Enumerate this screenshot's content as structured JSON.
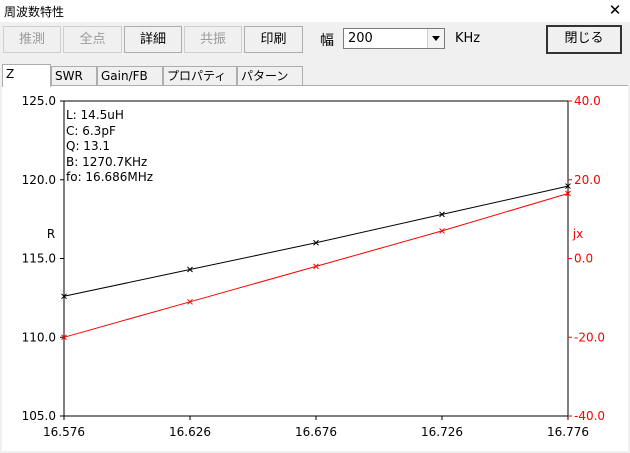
{
  "window": {
    "title": "周波数特性",
    "close_glyph": "✕"
  },
  "toolbar": {
    "buttons": [
      {
        "label": "推測",
        "enabled": false
      },
      {
        "label": "全点",
        "enabled": false
      },
      {
        "label": "詳細",
        "enabled": true
      },
      {
        "label": "共振",
        "enabled": false
      },
      {
        "label": "印刷",
        "enabled": true
      }
    ],
    "width_label": "幅",
    "width_value": "200",
    "width_unit": "KHz",
    "close_label": "閉じる"
  },
  "tabs": [
    {
      "label": "Z",
      "active": true
    },
    {
      "label": "SWR",
      "active": false
    },
    {
      "label": "Gain/FB",
      "active": false
    },
    {
      "label": "プロパティ",
      "active": false
    },
    {
      "label": "パターン",
      "active": false
    }
  ],
  "info": {
    "lines": [
      "L: 14.5uH",
      "C: 6.3pF",
      "Q: 13.1",
      "B: 1270.7KHz",
      "fo: 16.686MHz"
    ]
  },
  "chart_data": {
    "type": "line",
    "x": [
      16.576,
      16.626,
      16.676,
      16.726,
      16.776
    ],
    "x_ticks": [
      "16.576",
      "16.626",
      "16.676",
      "16.726",
      "16.776"
    ],
    "xlim": [
      16.576,
      16.776
    ],
    "left_axis": {
      "label": "R",
      "ylim": [
        105.0,
        125.0
      ],
      "ticks": [
        "105.0",
        "110.0",
        "115.0",
        "120.0",
        "125.0"
      ],
      "tick_values": [
        105,
        110,
        115,
        120,
        125
      ],
      "color": "#000000"
    },
    "right_axis": {
      "label": "jx",
      "ylim": [
        -40.0,
        40.0
      ],
      "ticks": [
        "-40.0",
        "-20.0",
        "0.0",
        "20.0",
        "40.0"
      ],
      "tick_values": [
        -40,
        -20,
        0,
        20,
        40
      ],
      "color": "#ff0000"
    },
    "series": [
      {
        "name": "R",
        "axis": "left",
        "color": "#000000",
        "values": [
          112.6,
          114.3,
          116.0,
          117.8,
          119.6
        ]
      },
      {
        "name": "jx",
        "axis": "right",
        "color": "#ff0000",
        "values": [
          -20.0,
          -11.0,
          -2.0,
          7.0,
          16.5
        ]
      }
    ],
    "grid": false
  }
}
